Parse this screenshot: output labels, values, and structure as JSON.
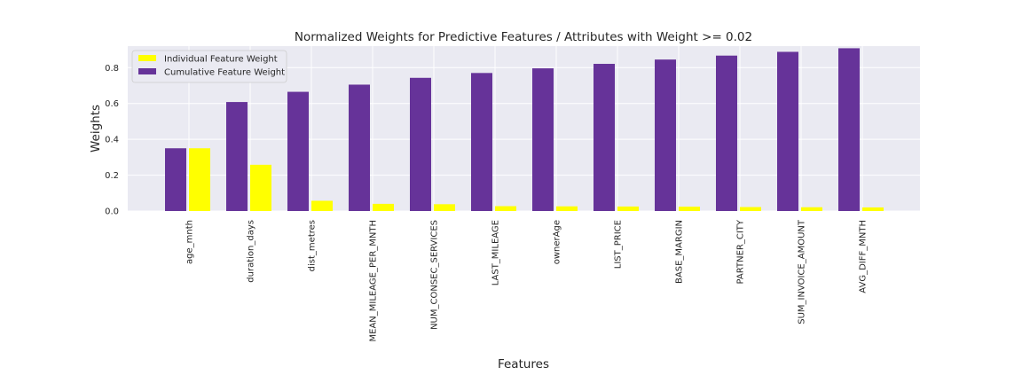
{
  "chart_data": {
    "type": "bar",
    "title": "Normalized Weights for Predictive Features / Attributes with Weight >= 0.02",
    "xlabel": "Features",
    "ylabel": "Weights",
    "ylim": [
      0,
      0.92
    ],
    "yticks": [
      "0.0",
      "0.2",
      "0.4",
      "0.6",
      "0.8"
    ],
    "grid": true,
    "legend_position": "top-left",
    "categories": [
      "age_mnth",
      "duration_days",
      "dist_metres",
      "MEAN_MILEAGE_PER_MNTH",
      "NUM_CONSEC_SERVICES",
      "LAST_MILEAGE",
      "ownerAge",
      "LIST_PRICE",
      "BASE_MARGIN",
      "PARTNER_CITY",
      "SUM_INVOICE_AMOUNT",
      "AVG_DIFF_MNTH"
    ],
    "series": [
      {
        "name": "Individual Feature Weight",
        "color": "#ffff00",
        "values": [
          0.35,
          0.258,
          0.057,
          0.04,
          0.038,
          0.027,
          0.026,
          0.025,
          0.024,
          0.022,
          0.021,
          0.02
        ]
      },
      {
        "name": "Cumulative Feature Weight",
        "color": "#663399",
        "values": [
          0.35,
          0.608,
          0.665,
          0.705,
          0.743,
          0.77,
          0.796,
          0.821,
          0.845,
          0.867,
          0.888,
          0.908
        ]
      }
    ]
  }
}
